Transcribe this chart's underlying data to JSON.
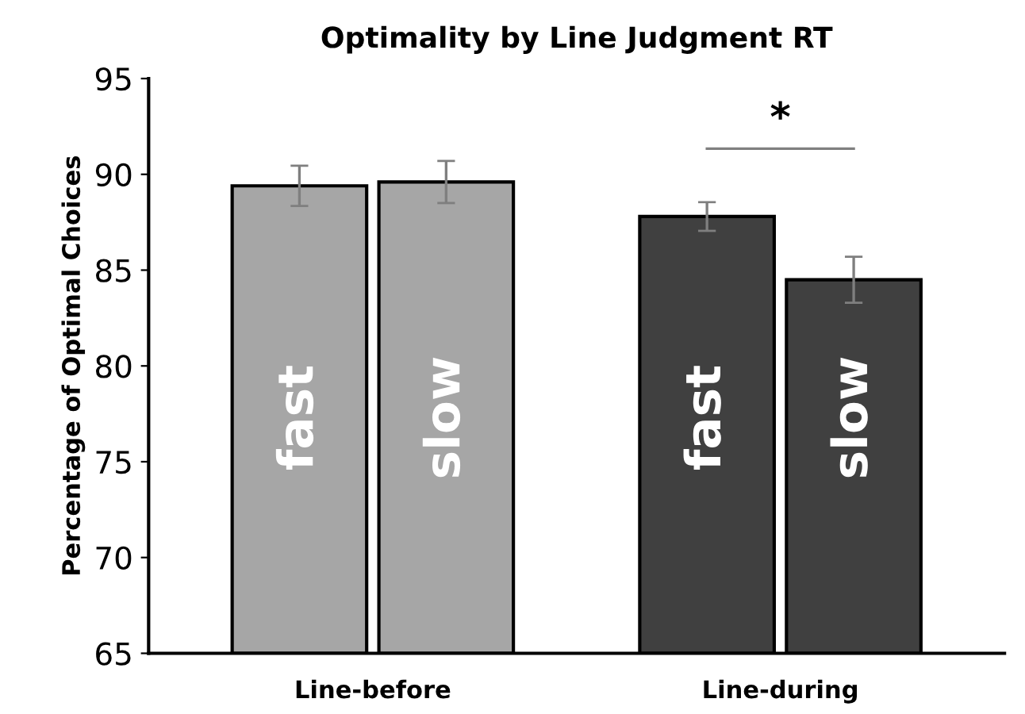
{
  "chart_data": {
    "type": "bar",
    "title": "Optimality by Line Judgment RT",
    "ylabel": "Percentage of Optimal Choices",
    "categories": [
      "Line-before",
      "Line-during"
    ],
    "series": [
      {
        "name": "fast",
        "colors": [
          "#a6a6a6",
          "#404040"
        ],
        "values": [
          89.4,
          87.8
        ],
        "errors": [
          1.05,
          0.75
        ]
      },
      {
        "name": "slow",
        "colors": [
          "#a6a6a6",
          "#404040"
        ],
        "values": [
          89.6,
          84.5
        ],
        "errors": [
          1.1,
          1.2
        ]
      }
    ],
    "ylim": [
      65,
      95
    ],
    "yticks": [
      65,
      70,
      75,
      80,
      85,
      90,
      95
    ],
    "grid": false,
    "legend": false,
    "annotations": [
      "*"
    ]
  }
}
